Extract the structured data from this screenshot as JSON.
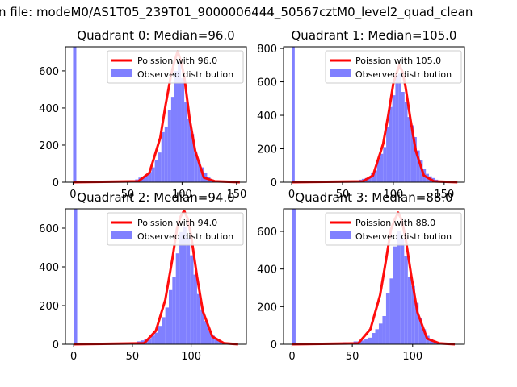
{
  "figure": {
    "suptitle": "n file: modeM0/AS1T05_239T01_9000006444_50567cztM0_level2_quad_clean"
  },
  "colors": {
    "histogram": "#8080ff",
    "poisson_line": "#ff0000",
    "axes": "#000000",
    "background": "#ffffff"
  },
  "chart_data": [
    {
      "type": "bar",
      "panel": "top-left",
      "title": "Quadrant 0: Median=96.0",
      "xlabel": "",
      "ylabel": "",
      "xlim": [
        -7,
        159
      ],
      "ylim": [
        0,
        730
      ],
      "xticks": [
        0,
        50,
        100,
        150
      ],
      "yticks": [
        0,
        200,
        400,
        600
      ],
      "legend": {
        "placement": "top-right",
        "entries": [
          "Poission with 96.0",
          "Observed distribution"
        ]
      },
      "histogram": {
        "bin_width": 3.0,
        "bins": [
          [
            0,
            730
          ],
          [
            57,
            15
          ],
          [
            60,
            25
          ],
          [
            63,
            30
          ],
          [
            66,
            40
          ],
          [
            69,
            55
          ],
          [
            72,
            80
          ],
          [
            75,
            120
          ],
          [
            78,
            160
          ],
          [
            81,
            270
          ],
          [
            84,
            300
          ],
          [
            87,
            390
          ],
          [
            90,
            460
          ],
          [
            93,
            600
          ],
          [
            96,
            650
          ],
          [
            99,
            560
          ],
          [
            102,
            430
          ],
          [
            105,
            340
          ],
          [
            108,
            260
          ],
          [
            111,
            160
          ],
          [
            114,
            110
          ],
          [
            117,
            80
          ],
          [
            120,
            50
          ],
          [
            123,
            30
          ],
          [
            126,
            15
          ],
          [
            129,
            8
          ],
          [
            132,
            5
          ]
        ]
      },
      "poisson": {
        "label": "Poission with 96.0",
        "mean": 96.0,
        "x": [
          0,
          60,
          70,
          80,
          85,
          90,
          93,
          96,
          99,
          102,
          107,
          112,
          120,
          130,
          153
        ],
        "y": [
          0,
          5,
          50,
          240,
          420,
          580,
          650,
          705,
          650,
          570,
          340,
          170,
          25,
          5,
          0
        ]
      }
    },
    {
      "type": "bar",
      "panel": "top-right",
      "title": "Quadrant 1: Median=105.0",
      "xlabel": "",
      "ylabel": "",
      "xlim": [
        -8,
        170
      ],
      "ylim": [
        0,
        810
      ],
      "xticks": [
        0,
        50,
        100,
        150
      ],
      "yticks": [
        0,
        200,
        400,
        600,
        800
      ],
      "legend": {
        "placement": "top-right",
        "entries": [
          "Poission with 105.0",
          "Observed distribution"
        ]
      },
      "histogram": {
        "bin_width": 3.0,
        "bins": [
          [
            0,
            810
          ],
          [
            66,
            15
          ],
          [
            69,
            20
          ],
          [
            72,
            25
          ],
          [
            75,
            30
          ],
          [
            78,
            55
          ],
          [
            81,
            70
          ],
          [
            84,
            130
          ],
          [
            87,
            170
          ],
          [
            90,
            210
          ],
          [
            93,
            330
          ],
          [
            96,
            450
          ],
          [
            99,
            520
          ],
          [
            102,
            640
          ],
          [
            105,
            650
          ],
          [
            108,
            540
          ],
          [
            111,
            480
          ],
          [
            114,
            390
          ],
          [
            117,
            340
          ],
          [
            120,
            270
          ],
          [
            123,
            190
          ],
          [
            126,
            130
          ],
          [
            129,
            80
          ],
          [
            132,
            50
          ],
          [
            135,
            35
          ],
          [
            138,
            25
          ],
          [
            141,
            15
          ],
          [
            144,
            7
          ],
          [
            147,
            4
          ]
        ]
      },
      "poisson": {
        "label": "Poission with 105.0",
        "mean": 105.0,
        "x": [
          0,
          70,
          80,
          90,
          95,
          100,
          103,
          106,
          109,
          112,
          117,
          122,
          130,
          140,
          163
        ],
        "y": [
          0,
          5,
          40,
          230,
          400,
          590,
          650,
          700,
          660,
          570,
          370,
          190,
          40,
          5,
          0
        ]
      }
    },
    {
      "type": "bar",
      "panel": "bottom-left",
      "title": "Quadrant 2: Median=94.0",
      "xlabel": "",
      "ylabel": "",
      "xlim": [
        -7,
        147
      ],
      "ylim": [
        0,
        700
      ],
      "xticks": [
        0,
        50,
        100
      ],
      "yticks": [
        0,
        200,
        400,
        600
      ],
      "legend": {
        "placement": "top-right",
        "entries": [
          "Poission with 94.0",
          "Observed distribution"
        ]
      },
      "histogram": {
        "bin_width": 3.0,
        "bins": [
          [
            0,
            700
          ],
          [
            48,
            10
          ],
          [
            54,
            15
          ],
          [
            57,
            20
          ],
          [
            60,
            25
          ],
          [
            63,
            30
          ],
          [
            66,
            45
          ],
          [
            69,
            60
          ],
          [
            72,
            95
          ],
          [
            75,
            140
          ],
          [
            78,
            190
          ],
          [
            81,
            280
          ],
          [
            84,
            350
          ],
          [
            87,
            470
          ],
          [
            90,
            580
          ],
          [
            93,
            610
          ],
          [
            96,
            550
          ],
          [
            99,
            460
          ],
          [
            102,
            360
          ],
          [
            105,
            260
          ],
          [
            108,
            180
          ],
          [
            111,
            120
          ],
          [
            114,
            70
          ],
          [
            117,
            45
          ],
          [
            120,
            25
          ],
          [
            123,
            15
          ],
          [
            126,
            8
          ]
        ]
      },
      "poisson": {
        "label": "Poission with 94.0",
        "mean": 94.0,
        "x": [
          0,
          60,
          70,
          78,
          84,
          88,
          91,
          94,
          97,
          100,
          105,
          110,
          118,
          128,
          140
        ],
        "y": [
          0,
          5,
          70,
          230,
          440,
          600,
          660,
          690,
          650,
          560,
          350,
          170,
          40,
          5,
          0
        ]
      }
    },
    {
      "type": "bar",
      "panel": "bottom-right",
      "title": "Quadrant 3: Median=88.0",
      "xlabel": "",
      "ylabel": "",
      "xlim": [
        -7,
        143
      ],
      "ylim": [
        0,
        720
      ],
      "xticks": [
        0,
        50,
        100
      ],
      "yticks": [
        0,
        200,
        400,
        600
      ],
      "legend": {
        "placement": "top-right",
        "entries": [
          "Poission with 88.0",
          "Observed distribution"
        ]
      },
      "histogram": {
        "bin_width": 3.0,
        "bins": [
          [
            0,
            720
          ],
          [
            42,
            10
          ],
          [
            48,
            10
          ],
          [
            51,
            15
          ],
          [
            54,
            15
          ],
          [
            57,
            20
          ],
          [
            60,
            30
          ],
          [
            63,
            35
          ],
          [
            66,
            60
          ],
          [
            69,
            80
          ],
          [
            72,
            110
          ],
          [
            75,
            150
          ],
          [
            78,
            270
          ],
          [
            81,
            350
          ],
          [
            84,
            520
          ],
          [
            87,
            600
          ],
          [
            90,
            560
          ],
          [
            93,
            470
          ],
          [
            96,
            360
          ],
          [
            99,
            310
          ],
          [
            102,
            220
          ],
          [
            105,
            140
          ],
          [
            108,
            80
          ],
          [
            111,
            45
          ],
          [
            114,
            25
          ],
          [
            117,
            15
          ],
          [
            120,
            8
          ]
        ]
      },
      "poisson": {
        "label": "Poission with 88.0",
        "mean": 88.0,
        "x": [
          0,
          55,
          65,
          73,
          78,
          82,
          85,
          88,
          91,
          94,
          99,
          104,
          112,
          122,
          135
        ],
        "y": [
          0,
          5,
          80,
          260,
          450,
          610,
          660,
          700,
          660,
          570,
          360,
          170,
          30,
          5,
          0
        ]
      }
    }
  ]
}
